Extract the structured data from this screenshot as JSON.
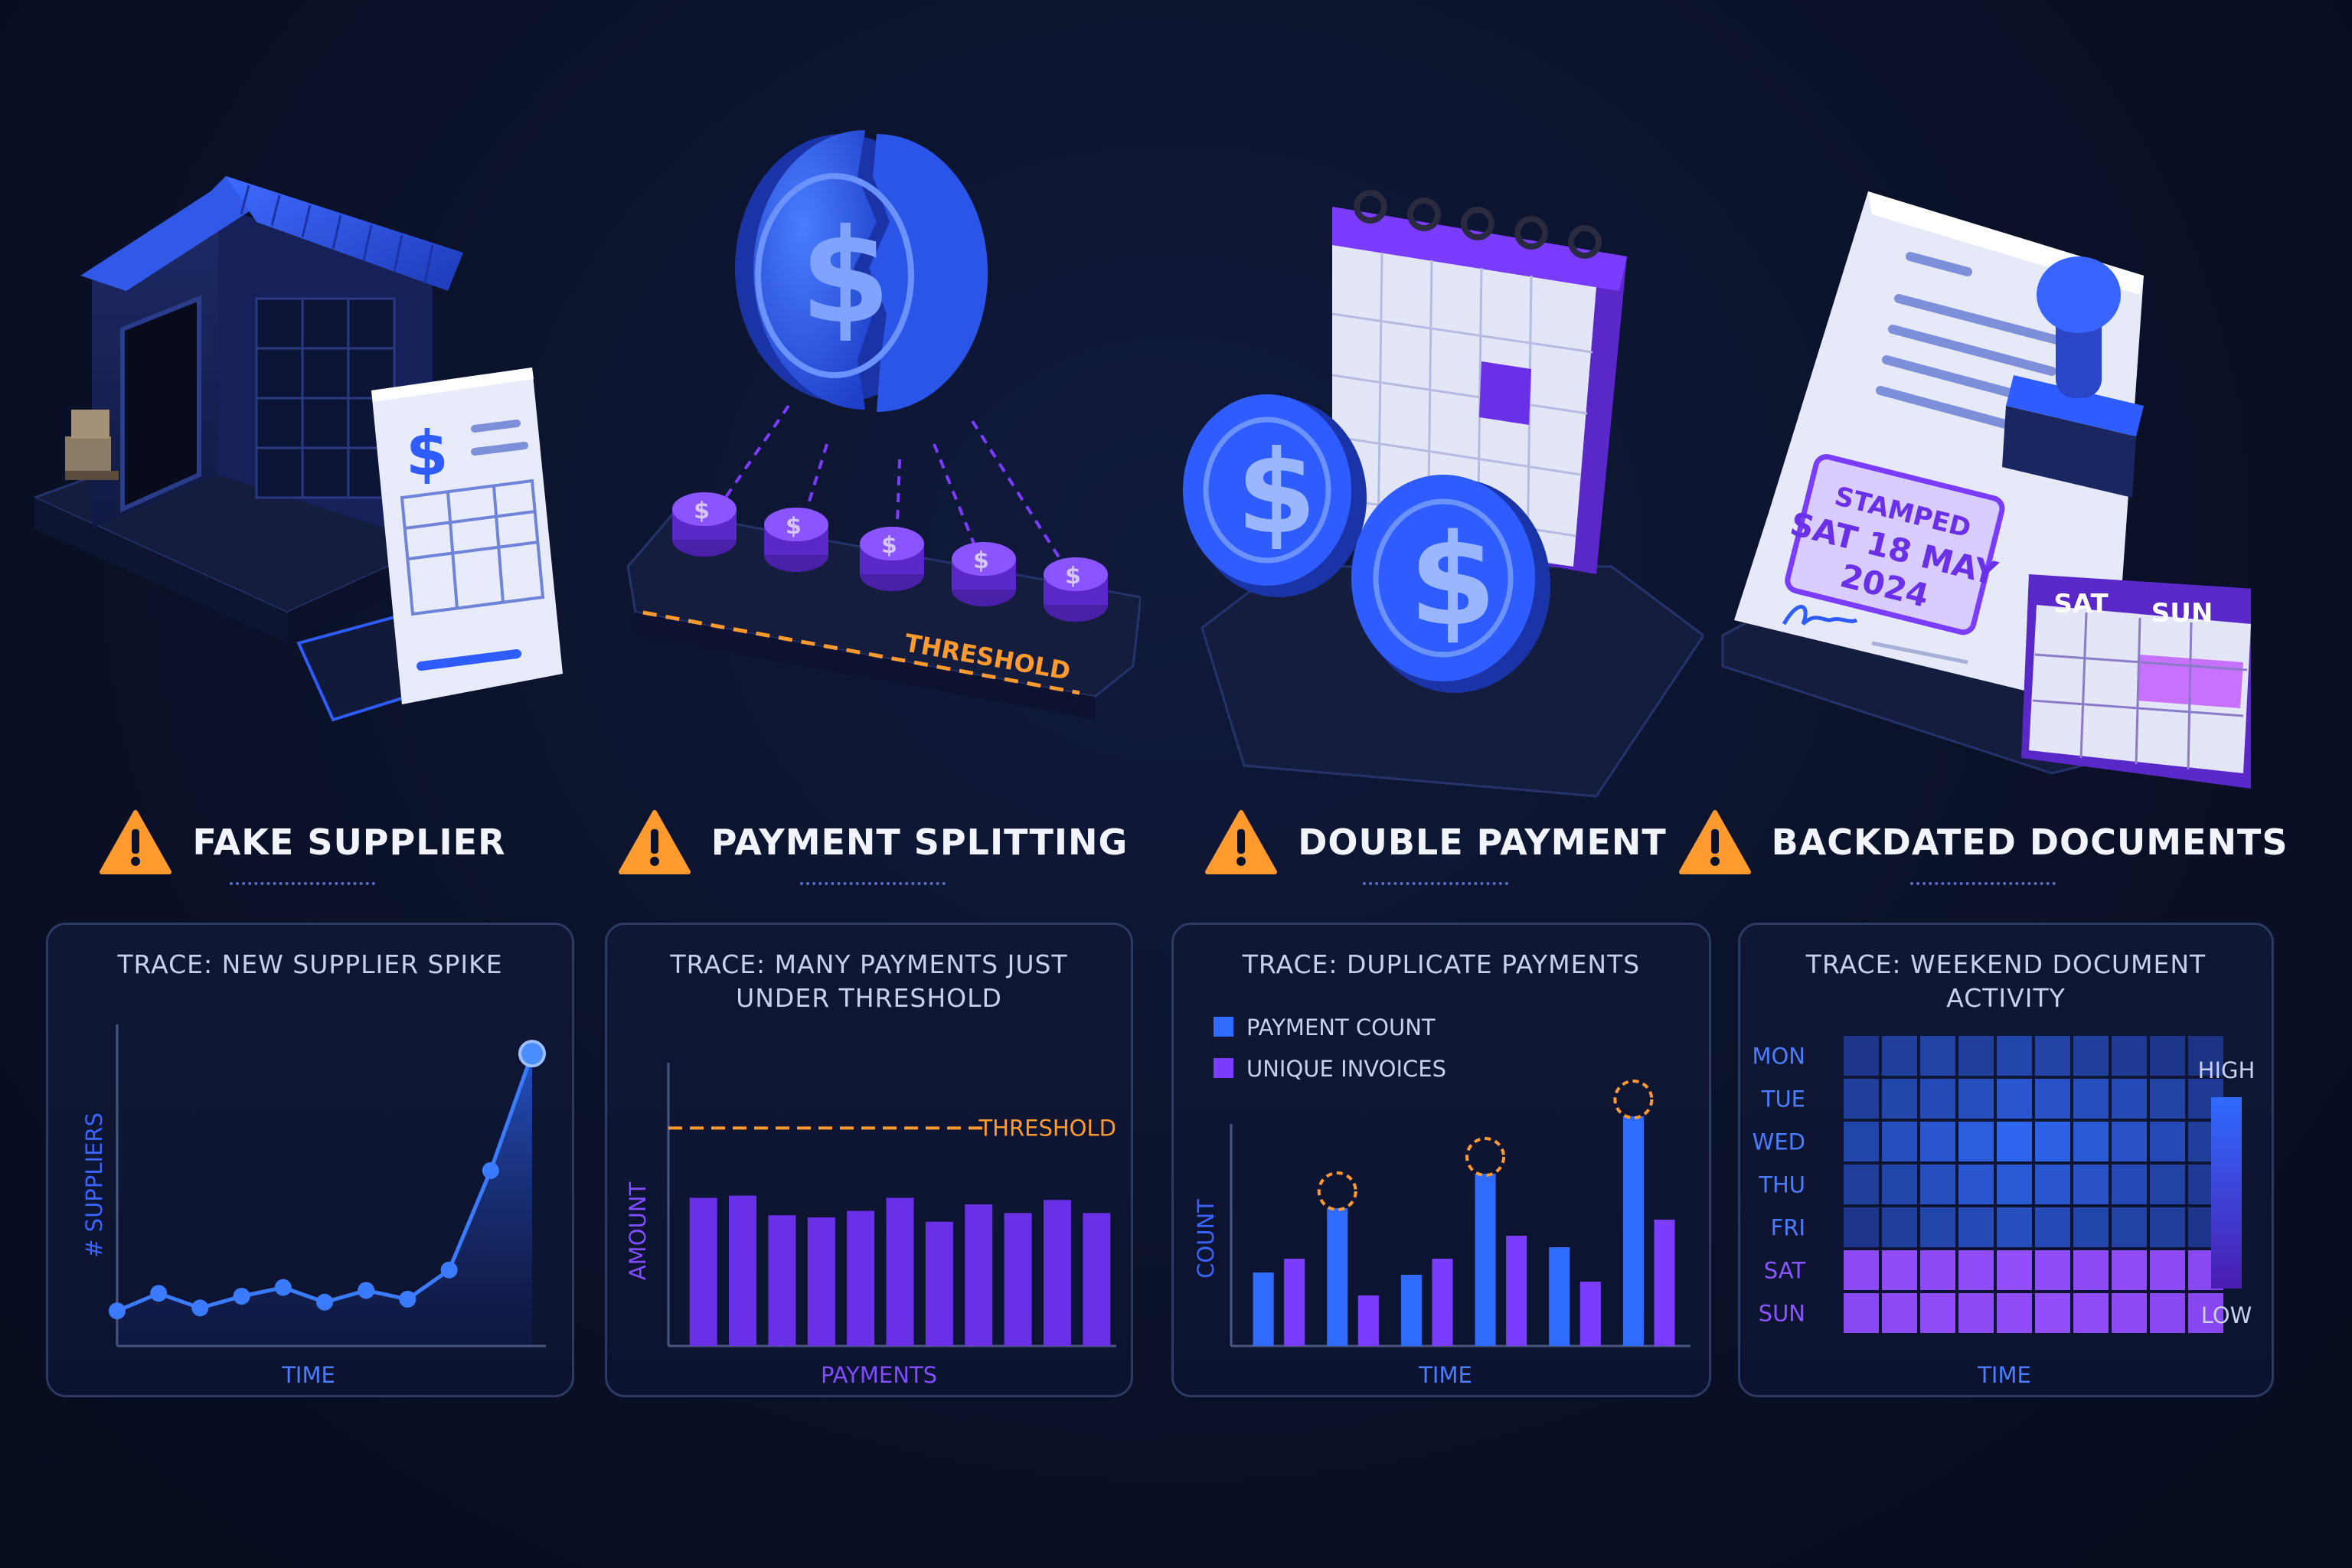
{
  "colors": {
    "background": "#0a1128",
    "blue": "#2f6bff",
    "purple": "#7a3cff",
    "orange": "#ff9a2e",
    "axis_label_blue": "#4a7dff",
    "axis_label_purple": "#7f4dff"
  },
  "panels": [
    {
      "title": "FAKE SUPPLIER",
      "warning_icon": "warning-triangle-icon",
      "illustration": "warehouse-with-invoice"
    },
    {
      "title": "PAYMENT SPLITTING",
      "warning_icon": "warning-triangle-icon",
      "illustration": "split-coin-over-coin-stacks",
      "threshold_label": "THRESHOLD"
    },
    {
      "title": "DOUBLE PAYMENT",
      "warning_icon": "warning-triangle-icon",
      "illustration": "two-coins-and-calendar"
    },
    {
      "title": "BACKDATED DOCUMENTS",
      "warning_icon": "warning-triangle-icon",
      "illustration": "stamped-document-and-weekend-calendar",
      "stamp_lines": [
        "STAMPED",
        "SAT 18 MAY",
        "2024"
      ],
      "calendar_days": [
        "SAT",
        "SUN"
      ]
    }
  ],
  "chart_data": [
    {
      "type": "line",
      "title": "TRACE: NEW SUPPLIER SPIKE",
      "xlabel": "TIME",
      "ylabel": "# SUPPLIERS",
      "x": [
        1,
        2,
        3,
        4,
        5,
        6,
        7,
        8,
        9,
        10,
        11
      ],
      "values": [
        12,
        18,
        13,
        17,
        20,
        15,
        19,
        16,
        26,
        60,
        100
      ],
      "ylim": [
        0,
        110
      ],
      "grid": false
    },
    {
      "type": "bar",
      "title": "TRACE: MANY PAYMENTS JUST UNDER THRESHOLD",
      "xlabel": "PAYMENTS",
      "ylabel": "AMOUNT",
      "threshold": {
        "label": "THRESHOLD",
        "value": 100
      },
      "values": [
        68,
        69,
        60,
        59,
        62,
        68,
        57,
        65,
        61,
        67,
        61
      ],
      "ylim": [
        0,
        130
      ],
      "grid": false
    },
    {
      "type": "bar",
      "title": "TRACE: DUPLICATE PAYMENTS",
      "xlabel": "TIME",
      "ylabel": "COUNT",
      "legend_position": "top-left",
      "series": [
        {
          "name": "PAYMENT COUNT",
          "values": [
            32,
            60,
            31,
            75,
            43,
            100
          ]
        },
        {
          "name": "UNIQUE INVOICES",
          "values": [
            38,
            22,
            38,
            48,
            28,
            55
          ]
        }
      ],
      "highlighted_groups": [
        1,
        3,
        5
      ],
      "ylim": [
        0,
        110
      ],
      "grid": false
    },
    {
      "type": "heatmap",
      "title": "TRACE: WEEKEND DOCUMENT ACTIVITY",
      "xlabel": "TIME",
      "rows": [
        "MON",
        "TUE",
        "WED",
        "THU",
        "FRI",
        "SAT",
        "SUN"
      ],
      "columns": 10,
      "values": [
        [
          0.3,
          0.4,
          0.45,
          0.4,
          0.5,
          0.45,
          0.4,
          0.35,
          0.3,
          0.25
        ],
        [
          0.4,
          0.5,
          0.55,
          0.6,
          0.7,
          0.65,
          0.6,
          0.55,
          0.45,
          0.35
        ],
        [
          0.5,
          0.6,
          0.7,
          0.8,
          0.9,
          0.85,
          0.75,
          0.65,
          0.55,
          0.4
        ],
        [
          0.4,
          0.5,
          0.6,
          0.7,
          0.75,
          0.7,
          0.65,
          0.55,
          0.45,
          0.35
        ],
        [
          0.3,
          0.4,
          0.5,
          0.55,
          0.6,
          0.55,
          0.5,
          0.45,
          0.4,
          0.3
        ],
        [
          0.85,
          0.9,
          0.85,
          0.9,
          0.95,
          0.9,
          0.85,
          0.9,
          0.85,
          0.8
        ],
        [
          0.8,
          0.85,
          0.9,
          0.85,
          0.9,
          0.95,
          0.9,
          0.85,
          0.8,
          0.75
        ]
      ],
      "weekend_rows": [
        5,
        6
      ],
      "legend": {
        "high": "HIGH",
        "low": "LOW"
      }
    }
  ]
}
